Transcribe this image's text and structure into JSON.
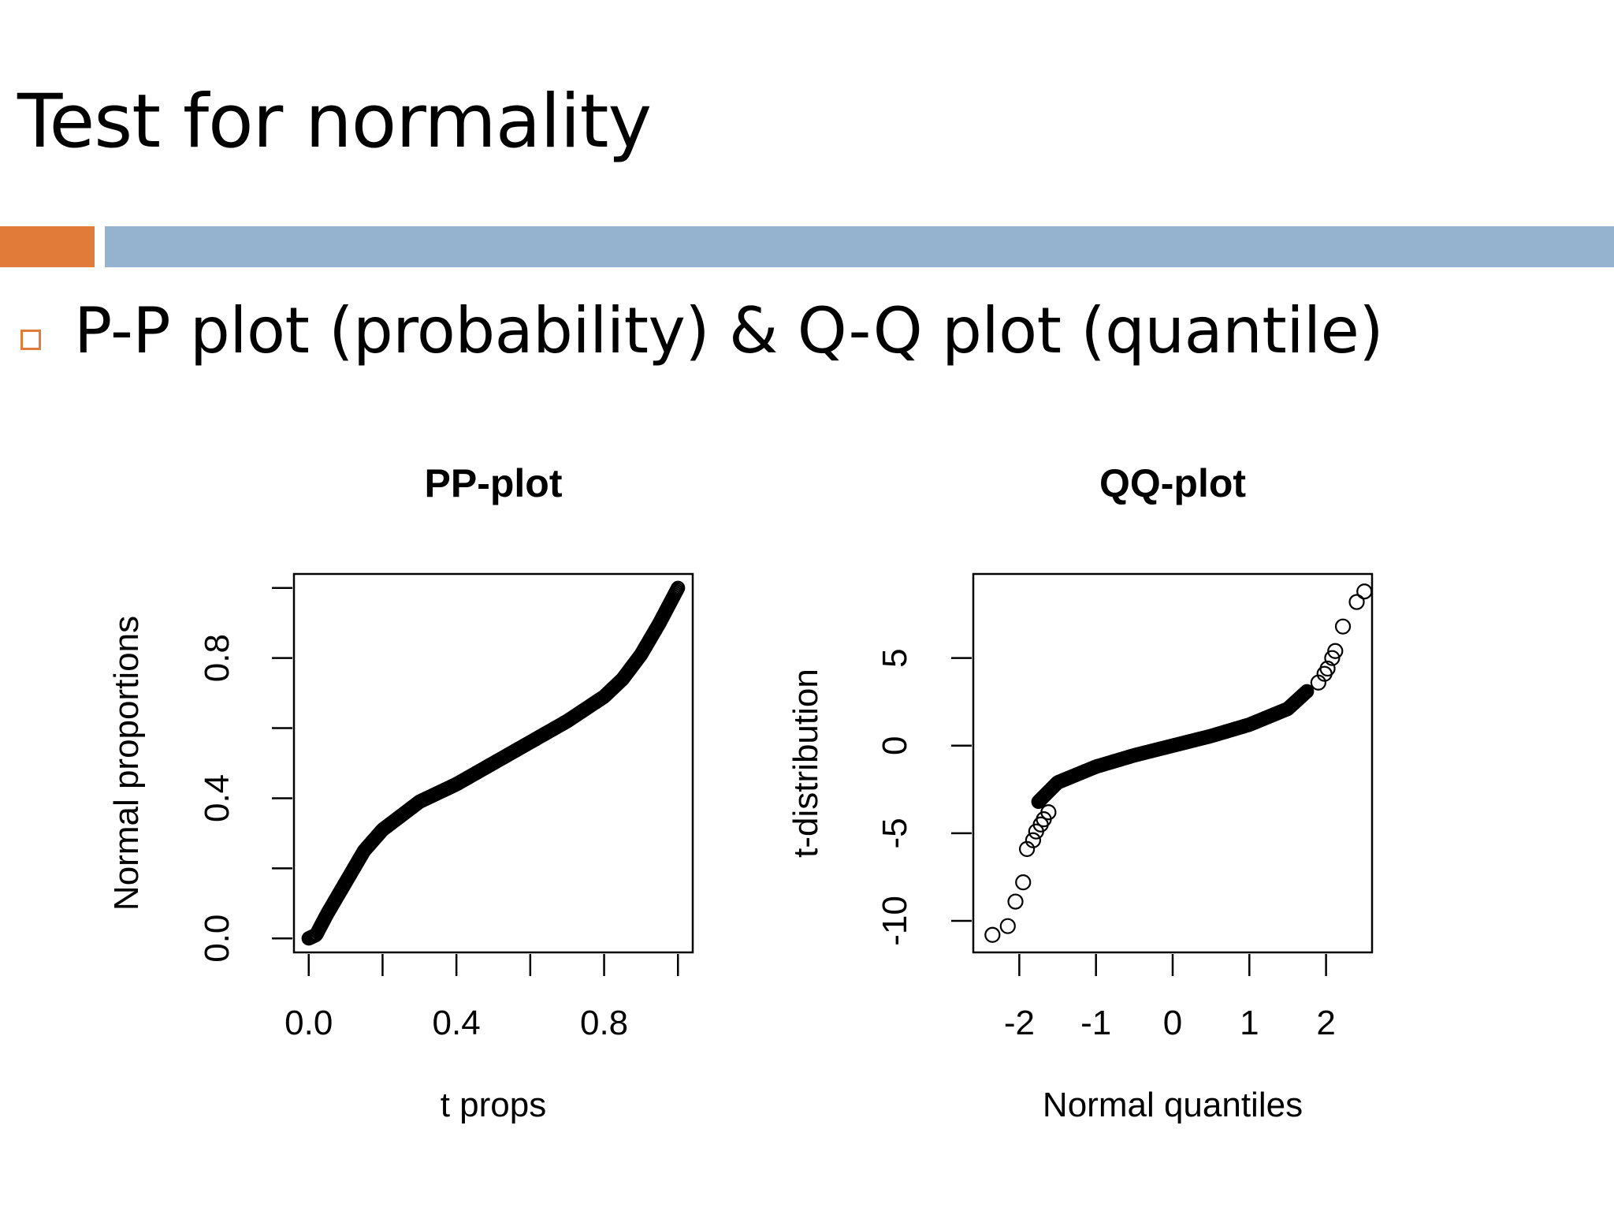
{
  "slide": {
    "title": "Test for normality",
    "bullet": "P-P plot (probability) & Q-Q plot (quantile)",
    "colors": {
      "accent_orange": "#E07B39",
      "accent_blue": "#95B3CF"
    }
  },
  "chart_data": [
    {
      "type": "scatter",
      "title": "PP-plot",
      "xlabel": "t props",
      "ylabel": "Normal proportions",
      "xlim": [
        -0.04,
        1.04
      ],
      "ylim": [
        -0.04,
        1.04
      ],
      "xticks": [
        0.0,
        0.2,
        0.4,
        0.6,
        0.8,
        1.0
      ],
      "xtick_labels": [
        "0.0",
        "",
        "0.4",
        "",
        "0.8",
        ""
      ],
      "yticks": [
        0.0,
        0.2,
        0.4,
        0.6,
        0.8,
        1.0
      ],
      "ytick_labels": [
        "0.0",
        "",
        "0.4",
        "",
        "0.8",
        ""
      ],
      "grid": false,
      "marker": "open-circle",
      "curve": [
        [
          0.0,
          0.0
        ],
        [
          0.02,
          0.01
        ],
        [
          0.05,
          0.07
        ],
        [
          0.1,
          0.16
        ],
        [
          0.15,
          0.25
        ],
        [
          0.2,
          0.31
        ],
        [
          0.3,
          0.39
        ],
        [
          0.4,
          0.44
        ],
        [
          0.5,
          0.5
        ],
        [
          0.6,
          0.56
        ],
        [
          0.7,
          0.62
        ],
        [
          0.8,
          0.69
        ],
        [
          0.85,
          0.74
        ],
        [
          0.9,
          0.81
        ],
        [
          0.95,
          0.9
        ],
        [
          0.98,
          0.96
        ],
        [
          1.0,
          1.0
        ]
      ]
    },
    {
      "type": "scatter",
      "title": "QQ-plot",
      "xlabel": "Normal quantiles",
      "ylabel": "t-distribution",
      "xlim": [
        -2.6,
        2.6
      ],
      "ylim": [
        -11.8,
        9.8
      ],
      "xticks": [
        -2,
        -1,
        0,
        1,
        2
      ],
      "xtick_labels": [
        "-2",
        "-1",
        "0",
        "1",
        "2"
      ],
      "yticks": [
        -10,
        -5,
        0,
        5
      ],
      "ytick_labels": [
        "-10",
        "-5",
        "0",
        "5"
      ],
      "grid": false,
      "marker": "open-circle",
      "curve": [
        [
          -1.75,
          -3.2
        ],
        [
          -1.5,
          -2.1
        ],
        [
          -1.0,
          -1.2
        ],
        [
          -0.5,
          -0.55
        ],
        [
          0.0,
          0.0
        ],
        [
          0.5,
          0.55
        ],
        [
          1.0,
          1.2
        ],
        [
          1.5,
          2.1
        ],
        [
          1.75,
          3.1
        ]
      ],
      "outliers": [
        [
          -2.35,
          -10.8
        ],
        [
          -2.15,
          -10.3
        ],
        [
          -2.05,
          -8.9
        ],
        [
          -1.95,
          -7.8
        ],
        [
          -1.9,
          -5.9
        ],
        [
          -1.82,
          -5.4
        ],
        [
          -1.78,
          -4.9
        ],
        [
          -1.72,
          -4.5
        ],
        [
          -1.68,
          -4.2
        ],
        [
          -1.62,
          -3.8
        ],
        [
          1.9,
          3.6
        ],
        [
          1.98,
          4.1
        ],
        [
          2.02,
          4.4
        ],
        [
          2.08,
          5.0
        ],
        [
          2.12,
          5.4
        ],
        [
          2.22,
          6.8
        ],
        [
          2.4,
          8.2
        ],
        [
          2.5,
          8.8
        ]
      ]
    }
  ]
}
